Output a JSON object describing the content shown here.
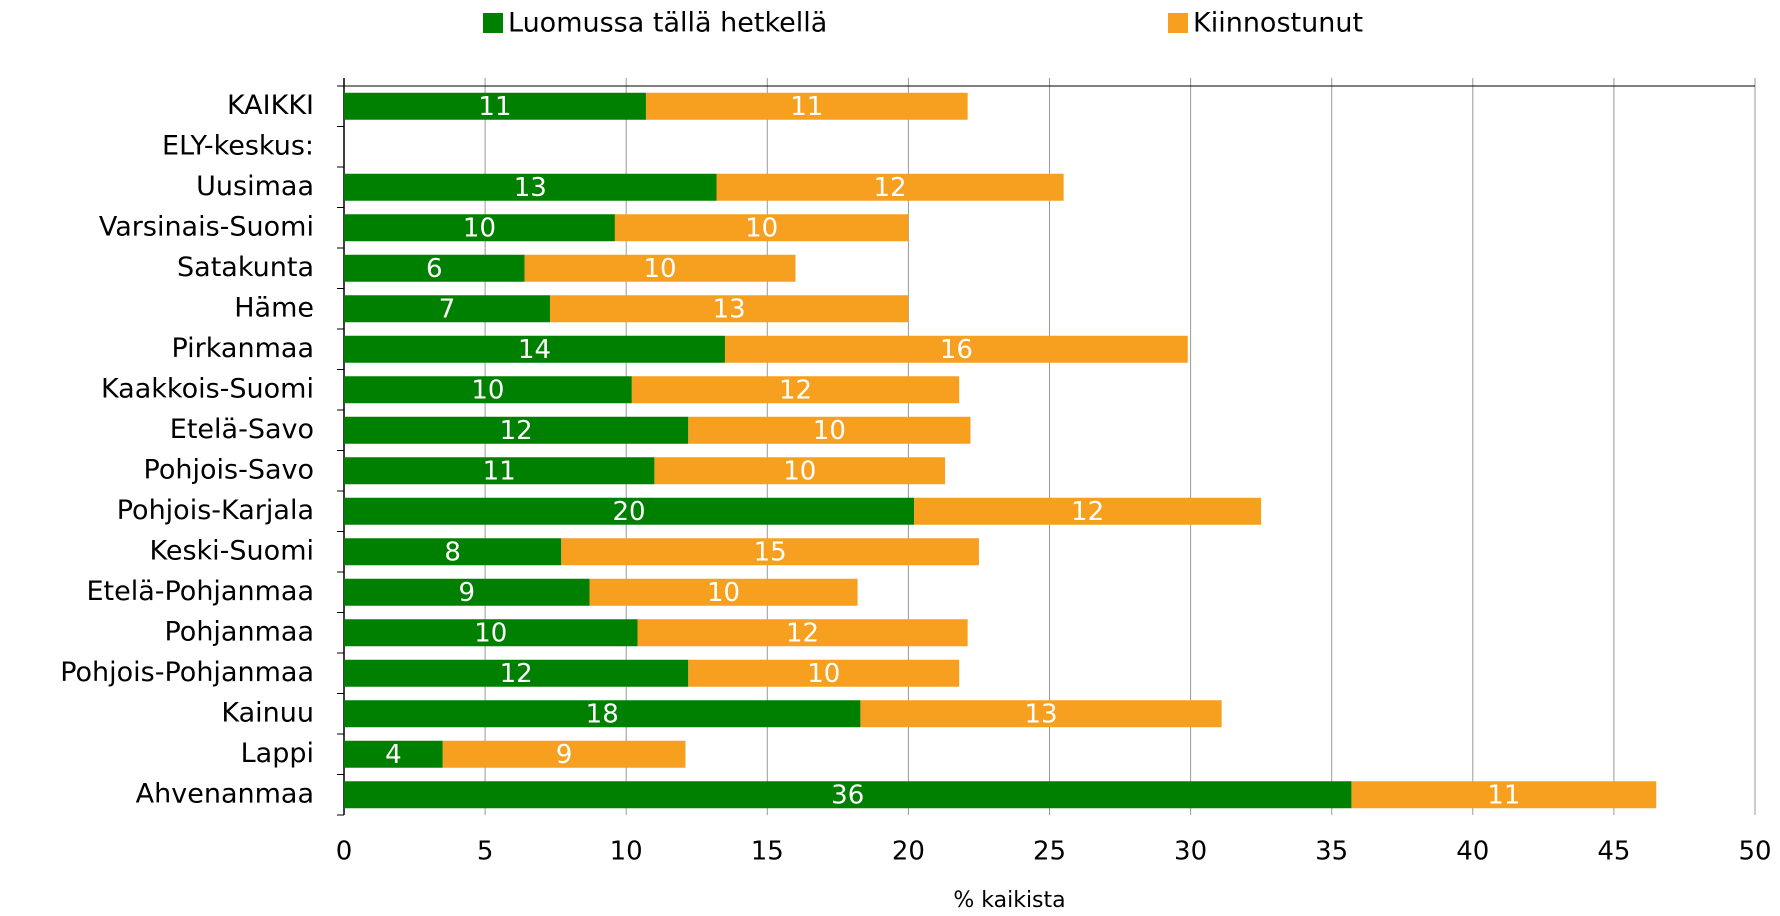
{
  "chart_data": {
    "type": "stacked-barh",
    "categories": [
      "KAIKKI",
      "ELY-keskus:",
      "Uusimaa",
      "Varsinais-Suomi",
      "Satakunta",
      "Häme",
      "Pirkanmaa",
      "Kaakkois-Suomi",
      "Etelä-Savo",
      "Pohjois-Savo",
      "Pohjois-Karjala",
      "Keski-Suomi",
      "Etelä-Pohjanmaa",
      "Pohjanmaa",
      "Pohjois-Pohjanmaa",
      "Kainuu",
      "Lappi",
      "Ahvenanmaa"
    ],
    "series": [
      {
        "name": "Luomussa tällä hetkellä",
        "color": "#008000",
        "values": [
          10.7,
          null,
          13.2,
          9.6,
          6.4,
          7.3,
          13.5,
          10.2,
          12.2,
          11.0,
          20.2,
          7.7,
          8.7,
          10.4,
          12.2,
          18.3,
          3.5,
          35.7
        ],
        "value_labels": [
          "11",
          null,
          "13",
          "10",
          "6",
          "7",
          "14",
          "10",
          "12",
          "11",
          "20",
          "8",
          "9",
          "10",
          "12",
          "18",
          "4",
          "36"
        ]
      },
      {
        "name": "Kiinnostunut",
        "color": "#f7a020",
        "values": [
          11.4,
          null,
          12.3,
          10.4,
          9.6,
          12.7,
          16.4,
          11.6,
          10.0,
          10.3,
          12.3,
          14.8,
          9.5,
          11.7,
          9.6,
          12.8,
          8.6,
          10.8
        ],
        "value_labels": [
          "11",
          null,
          "12",
          "10",
          "10",
          "13",
          "16",
          "12",
          "10",
          "10",
          "12",
          "15",
          "10",
          "12",
          "10",
          "13",
          "9",
          "11"
        ]
      }
    ],
    "xlabel": "% kaikista",
    "xlim": [
      0,
      50
    ],
    "xticks": [
      0,
      5,
      10,
      15,
      20,
      25,
      30,
      35,
      40,
      45,
      50
    ],
    "grid": true,
    "legend": "top"
  }
}
